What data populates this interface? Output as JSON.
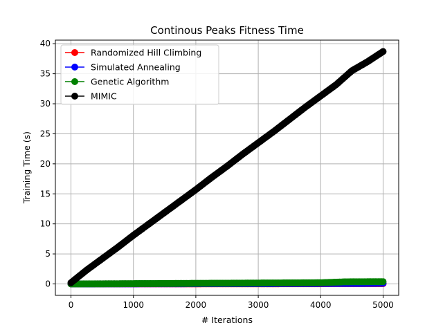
{
  "chart_data": {
    "type": "line",
    "title": "Continous Peaks Fitness Time",
    "xlabel": "# Iterations",
    "ylabel": "Training Time (s)",
    "xlim": [
      -250,
      5250
    ],
    "ylim": [
      -1.9,
      40.6
    ],
    "xticks": [
      0,
      1000,
      2000,
      3000,
      4000,
      5000
    ],
    "yticks": [
      0,
      5,
      10,
      15,
      20,
      25,
      30,
      35,
      40
    ],
    "grid": true,
    "legend_position": "top-left",
    "series": [
      {
        "name": "Randomized Hill Climbing",
        "color": "#ff0000",
        "x": [
          0,
          500,
          1000,
          1500,
          2000,
          2500,
          3000,
          3500,
          4000,
          4500,
          5000
        ],
        "values": [
          0,
          0.01,
          0.01,
          0.02,
          0.02,
          0.03,
          0.03,
          0.04,
          0.04,
          0.05,
          0.05
        ]
      },
      {
        "name": "Simulated Annealing",
        "color": "#0000ff",
        "x": [
          0,
          500,
          1000,
          1500,
          2000,
          2500,
          3000,
          3500,
          4000,
          4500,
          5000
        ],
        "values": [
          0,
          0.01,
          0.02,
          0.03,
          0.04,
          0.05,
          0.06,
          0.07,
          0.08,
          0.09,
          0.1
        ]
      },
      {
        "name": "Genetic Algorithm",
        "color": "#008000",
        "x": [
          0,
          500,
          1000,
          1500,
          2000,
          2500,
          3000,
          3500,
          4000,
          4400,
          5000
        ],
        "values": [
          0,
          0.02,
          0.05,
          0.07,
          0.1,
          0.12,
          0.15,
          0.17,
          0.2,
          0.35,
          0.38
        ]
      },
      {
        "name": "MIMIC",
        "color": "#000000",
        "x": [
          0,
          250,
          500,
          750,
          1000,
          1250,
          1500,
          1750,
          2000,
          2250,
          2500,
          2750,
          3000,
          3250,
          3500,
          3750,
          4000,
          4250,
          4500,
          4750,
          5000
        ],
        "values": [
          0.2,
          2.3,
          4.2,
          6.1,
          8.1,
          10.0,
          11.9,
          13.8,
          15.7,
          17.7,
          19.6,
          21.6,
          23.5,
          25.4,
          27.4,
          29.4,
          31.3,
          33.2,
          35.5,
          37.0,
          38.7
        ]
      }
    ]
  }
}
